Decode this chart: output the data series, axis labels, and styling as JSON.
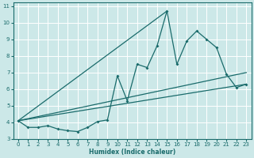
{
  "xlabel": "Humidex (Indice chaleur)",
  "xlim": [
    -0.5,
    23.5
  ],
  "ylim": [
    3,
    11.2
  ],
  "xticks": [
    0,
    1,
    2,
    3,
    4,
    5,
    6,
    7,
    8,
    9,
    10,
    11,
    12,
    13,
    14,
    15,
    16,
    17,
    18,
    19,
    20,
    21,
    22,
    23
  ],
  "yticks": [
    3,
    4,
    5,
    6,
    7,
    8,
    9,
    10,
    11
  ],
  "background_color": "#cce8e8",
  "grid_color": "#ffffff",
  "line_color": "#1a6b6b",
  "x": [
    0,
    1,
    2,
    3,
    4,
    5,
    6,
    7,
    8,
    9,
    10,
    11,
    12,
    13,
    14,
    15,
    16,
    17,
    18,
    19,
    20,
    21,
    22,
    23
  ],
  "series1": [
    4.1,
    3.7,
    3.7,
    3.8,
    3.6,
    3.5,
    3.45,
    3.7,
    4.05,
    4.15,
    6.8,
    5.3,
    7.5,
    7.3,
    8.6,
    10.7,
    7.5,
    8.9,
    9.5,
    9.0,
    8.5,
    6.9,
    6.1,
    6.3
  ],
  "trend_lines": [
    [
      [
        0,
        4.1
      ],
      [
        23,
        6.3
      ]
    ],
    [
      [
        0,
        4.1
      ],
      [
        23,
        7.0
      ]
    ],
    [
      [
        0,
        4.1
      ],
      [
        15,
        10.7
      ]
    ]
  ]
}
